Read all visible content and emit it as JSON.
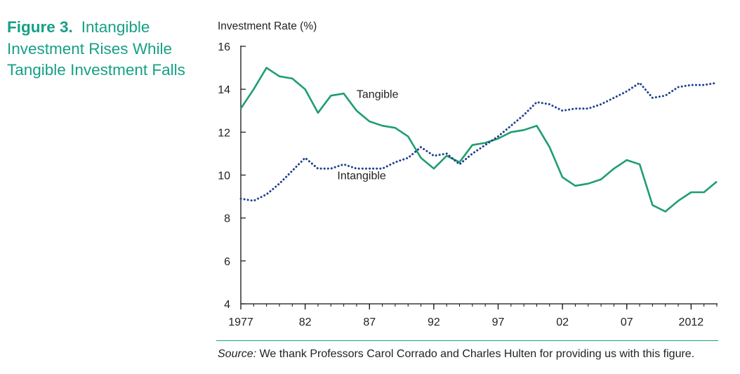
{
  "figure": {
    "number": "Figure 3.",
    "title": "Intangible Investment Rises While Tangible Investment Falls"
  },
  "source": {
    "label": "Source:",
    "text": "We thank Professors Carol Corrado and Charles Hulten for providing us with this figure."
  },
  "colors": {
    "accent": "#16a085",
    "tangible": "#1f9e6e",
    "intangible": "#1f3f8f",
    "axis": "#111111",
    "text": "#222222"
  },
  "chart_data": {
    "type": "line",
    "title": "",
    "ylabel": "Investment Rate (%)",
    "xlabel": "",
    "ylim": [
      4,
      16
    ],
    "xlim": [
      1977,
      2014
    ],
    "yticks": [
      4,
      6,
      8,
      10,
      12,
      14,
      16
    ],
    "xticks": [
      {
        "value": 1977,
        "label": "1977"
      },
      {
        "value": 1982,
        "label": "82"
      },
      {
        "value": 1987,
        "label": "87"
      },
      {
        "value": 1992,
        "label": "92"
      },
      {
        "value": 1997,
        "label": "97"
      },
      {
        "value": 2002,
        "label": "02"
      },
      {
        "value": 2007,
        "label": "07"
      },
      {
        "value": 2012,
        "label": "2012"
      }
    ],
    "series": [
      {
        "name": "Tangible",
        "style": "solid",
        "x": [
          1977,
          1978,
          1979,
          1980,
          1981,
          1982,
          1983,
          1984,
          1985,
          1986,
          1987,
          1988,
          1989,
          1990,
          1991,
          1992,
          1993,
          1994,
          1995,
          1996,
          1997,
          1998,
          1999,
          2000,
          2001,
          2002,
          2003,
          2004,
          2005,
          2006,
          2007,
          2008,
          2009,
          2010,
          2011,
          2012,
          2013,
          2014
        ],
        "values": [
          13.1,
          14.0,
          15.0,
          14.6,
          14.5,
          14.0,
          12.9,
          13.7,
          13.8,
          13.0,
          12.5,
          12.3,
          12.2,
          11.8,
          10.8,
          10.3,
          10.9,
          10.6,
          11.4,
          11.5,
          11.7,
          12.0,
          12.1,
          12.3,
          11.3,
          9.9,
          9.5,
          9.6,
          9.8,
          10.3,
          10.7,
          10.5,
          8.6,
          8.3,
          8.8,
          9.2,
          9.2,
          9.7
        ],
        "label": {
          "text": "Tangible",
          "x": 1986,
          "y": 13.6
        }
      },
      {
        "name": "Intangible",
        "style": "dotted",
        "x": [
          1977,
          1978,
          1979,
          1980,
          1981,
          1982,
          1983,
          1984,
          1985,
          1986,
          1987,
          1988,
          1989,
          1990,
          1991,
          1992,
          1993,
          1994,
          1995,
          1996,
          1997,
          1998,
          1999,
          2000,
          2001,
          2002,
          2003,
          2004,
          2005,
          2006,
          2007,
          2008,
          2009,
          2010,
          2011,
          2012,
          2013,
          2014
        ],
        "values": [
          8.9,
          8.8,
          9.1,
          9.6,
          10.2,
          10.8,
          10.3,
          10.3,
          10.5,
          10.3,
          10.3,
          10.3,
          10.6,
          10.8,
          11.3,
          10.9,
          11.0,
          10.5,
          11.0,
          11.4,
          11.8,
          12.3,
          12.8,
          13.4,
          13.3,
          13.0,
          13.1,
          13.1,
          13.3,
          13.6,
          13.9,
          14.3,
          13.6,
          13.7,
          14.1,
          14.2,
          14.2,
          14.3
        ],
        "label": {
          "text": "Intangible",
          "x": 1984.5,
          "y": 9.8
        }
      }
    ],
    "grid": false
  }
}
